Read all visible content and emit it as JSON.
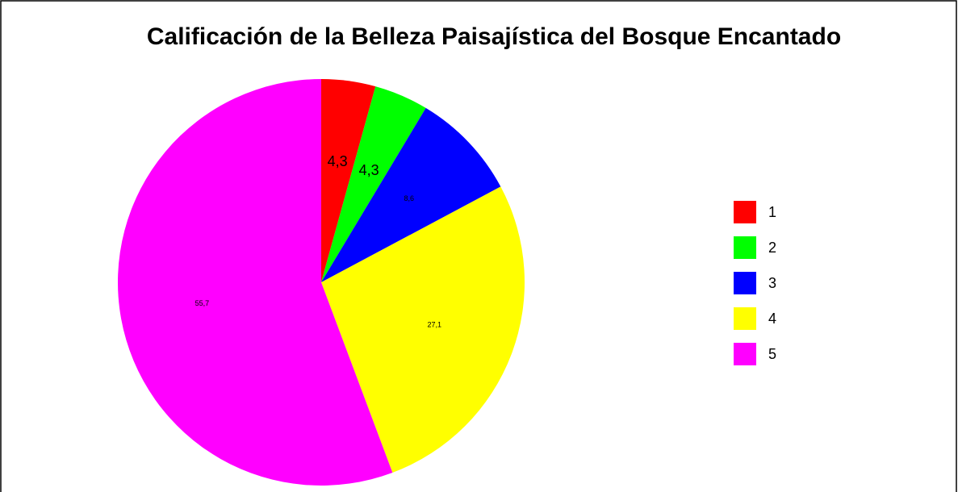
{
  "chart_data": {
    "type": "pie",
    "title": "Calificación de la Belleza Paisajística del Bosque Encantado",
    "categories": [
      "1",
      "2",
      "3",
      "4",
      "5"
    ],
    "values": [
      4.3,
      4.3,
      8.6,
      27.1,
      55.7
    ],
    "value_labels": [
      "4,3",
      "4,3",
      "8,6",
      "27,1",
      "55,7"
    ],
    "colors": [
      "#ff0000",
      "#00ff00",
      "#0000ff",
      "#ffff00",
      "#ff00ff"
    ],
    "legend": "right"
  }
}
